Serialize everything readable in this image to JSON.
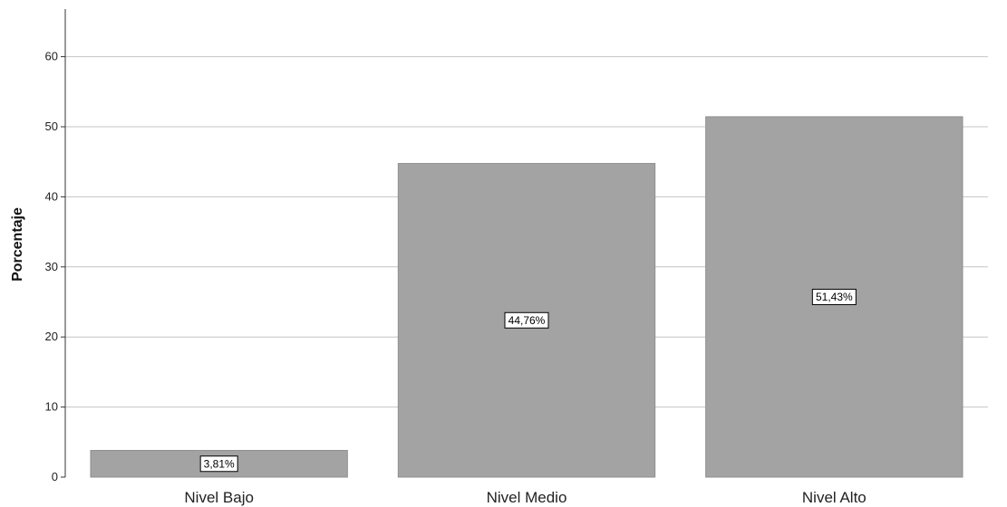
{
  "chart_data": {
    "type": "bar",
    "title": "",
    "xlabel": "",
    "ylabel": "Porcentaje",
    "ylim": [
      0,
      65
    ],
    "yticks": [
      0,
      10,
      20,
      30,
      40,
      50,
      60
    ],
    "categories": [
      "Nivel Bajo",
      "Nivel Medio",
      "Nivel Alto"
    ],
    "values": [
      3.81,
      44.76,
      51.43
    ],
    "data_labels": [
      "3,81%",
      "44,76%",
      "51,43%"
    ],
    "grid": true,
    "legend": "none",
    "colors": {
      "bar": "#a3a3a3",
      "bar_edge": "#8f8f8f",
      "grid": "#c4c4c4",
      "axis": "#333333"
    }
  }
}
